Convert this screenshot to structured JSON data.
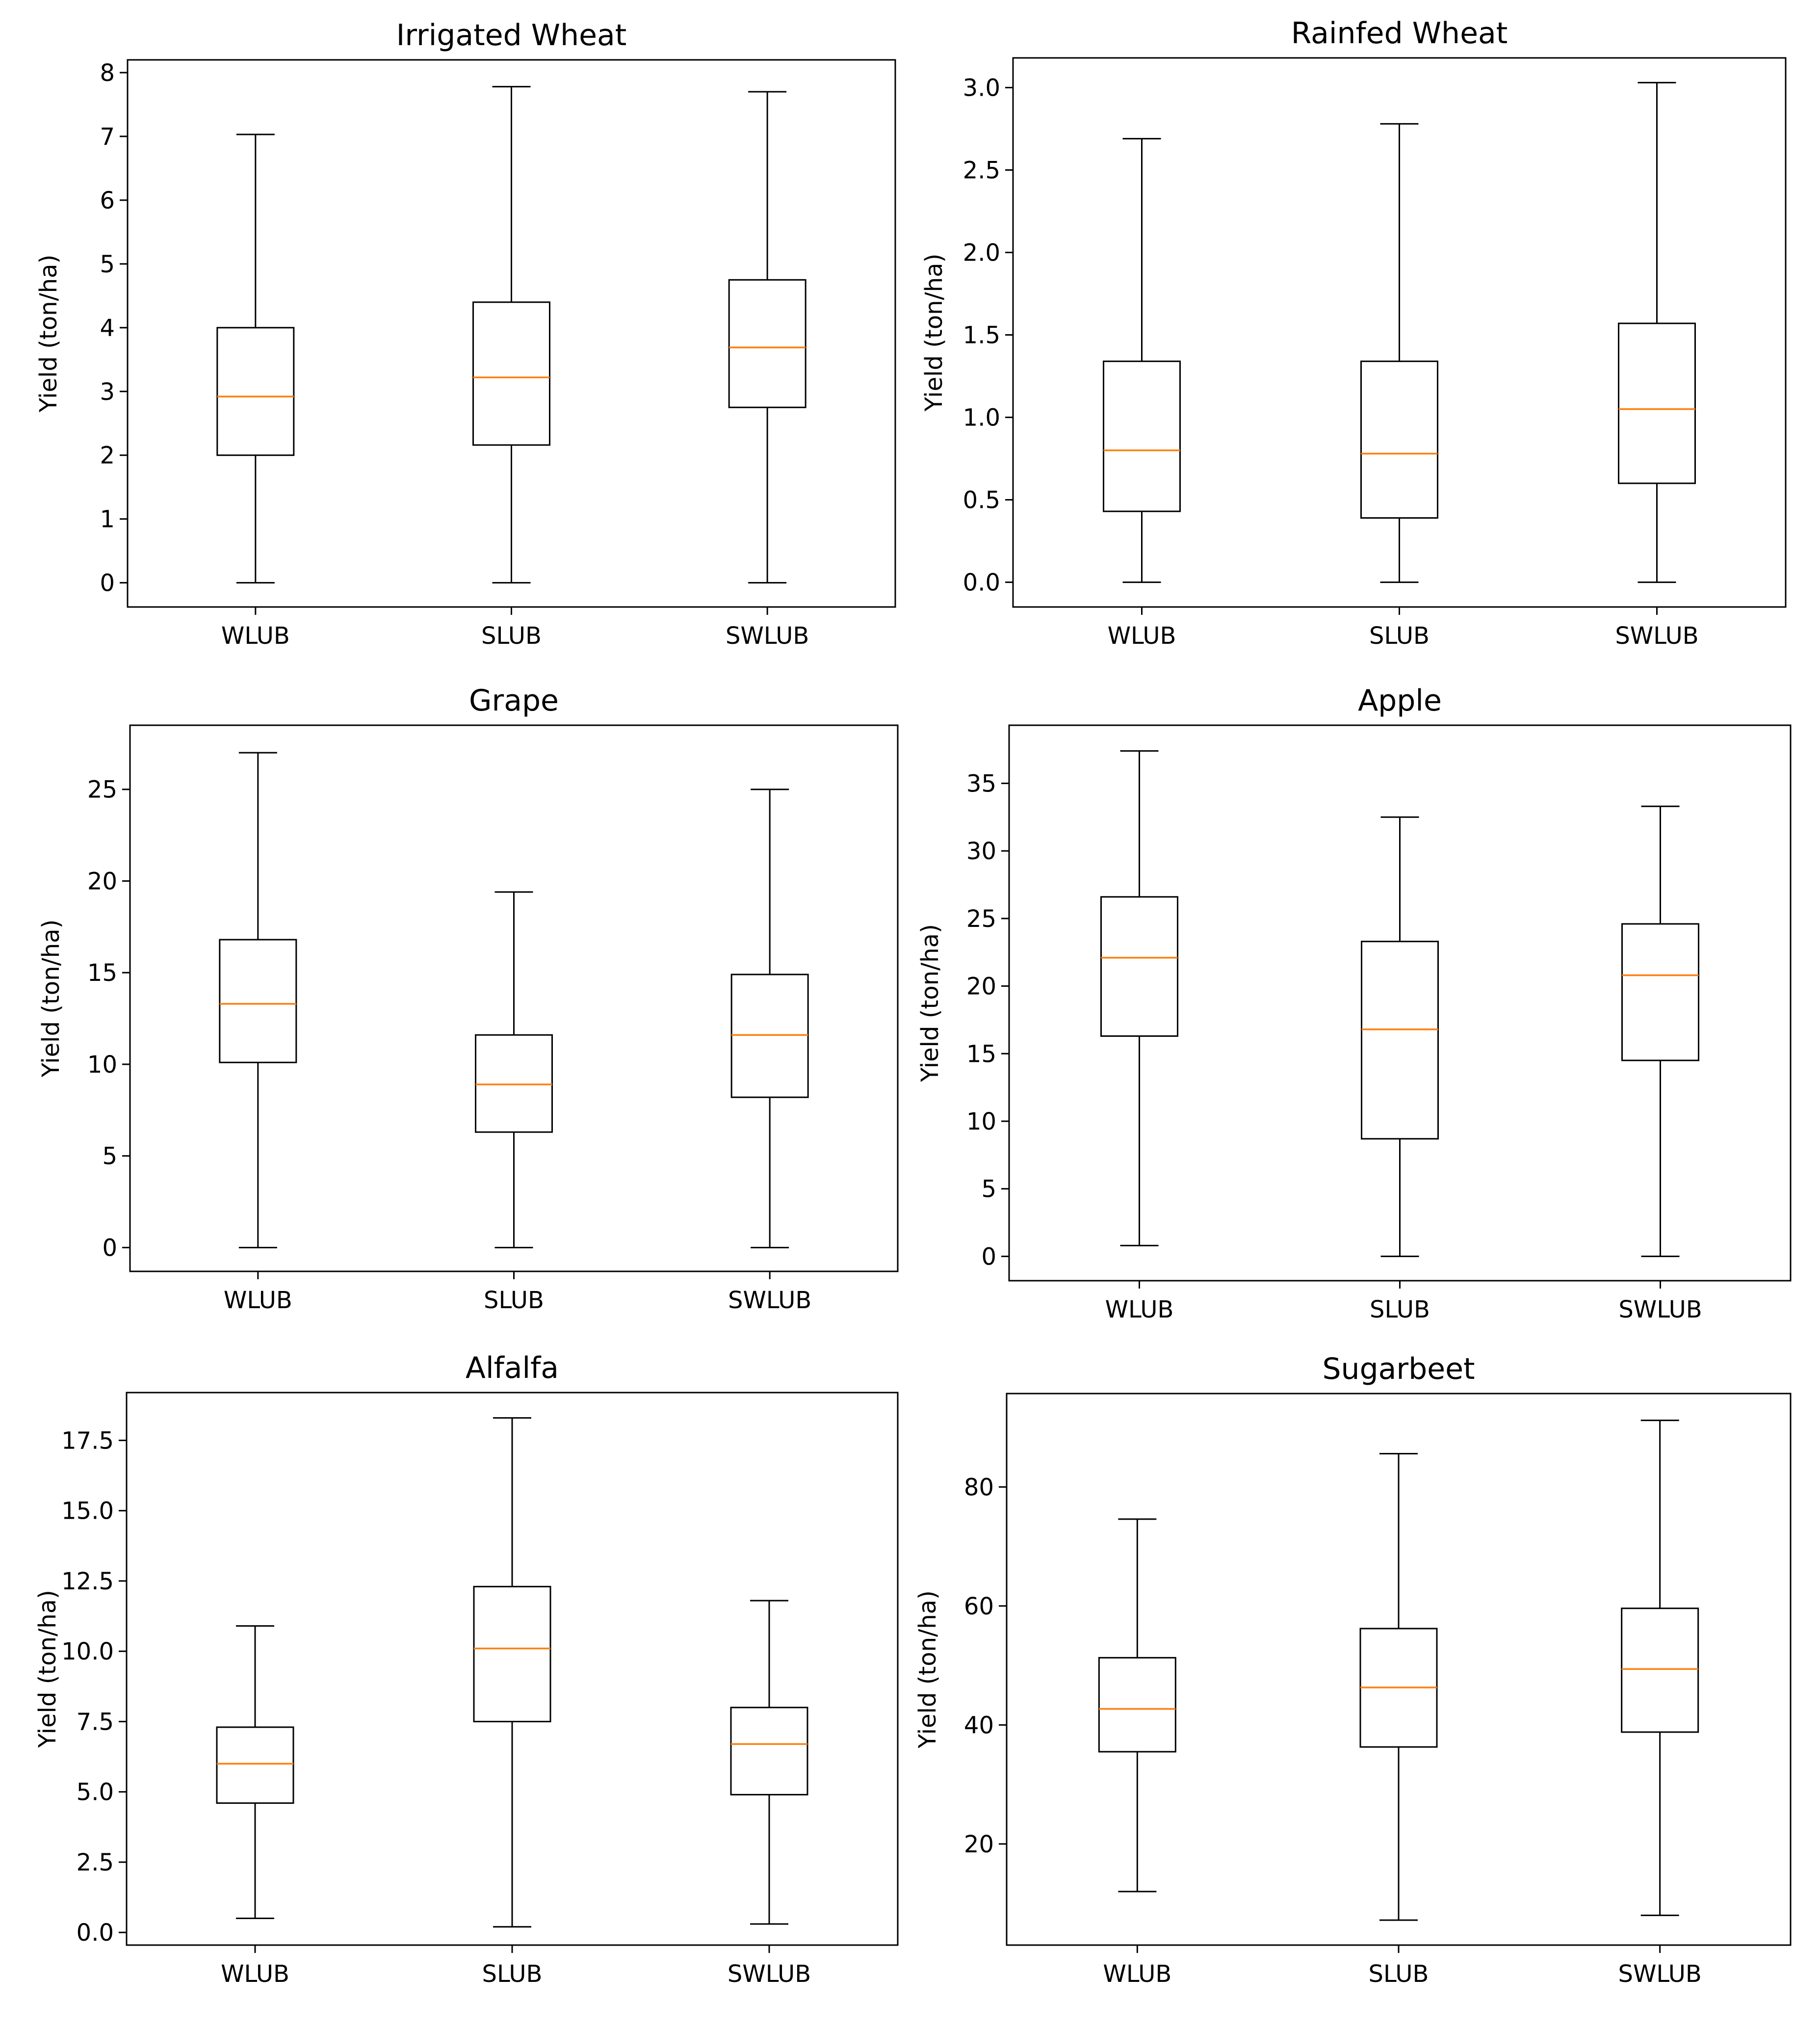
{
  "chart_data": [
    {
      "type": "box",
      "title": "Irrigated Wheat",
      "ylabel": "Yield (ton/ha)",
      "categories": [
        "WLUB",
        "SLUB",
        "SWLUB"
      ],
      "ylim": [
        -0.38,
        8.2
      ],
      "yticks": [
        0,
        1,
        2,
        3,
        4,
        5,
        6,
        7,
        8
      ],
      "yticklabels": [
        "0",
        "1",
        "2",
        "3",
        "4",
        "5",
        "6",
        "7",
        "8"
      ],
      "boxes": [
        {
          "min": 0.0,
          "q1": 2.0,
          "median": 2.92,
          "q3": 4.0,
          "max": 7.03
        },
        {
          "min": 0.0,
          "q1": 2.16,
          "median": 3.22,
          "q3": 4.4,
          "max": 7.78
        },
        {
          "min": 0.0,
          "q1": 2.75,
          "median": 3.69,
          "q3": 4.75,
          "max": 7.7
        }
      ]
    },
    {
      "type": "box",
      "title": "Rainfed Wheat",
      "ylabel": "Yield (ton/ha)",
      "categories": [
        "WLUB",
        "SLUB",
        "SWLUB"
      ],
      "ylim": [
        -0.15,
        3.18
      ],
      "yticks": [
        0,
        0.5,
        1,
        1.5,
        2,
        2.5,
        3
      ],
      "yticklabels": [
        "0.0",
        "0.5",
        "1.0",
        "1.5",
        "2.0",
        "2.5",
        "3.0"
      ],
      "boxes": [
        {
          "min": 0.0,
          "q1": 0.43,
          "median": 0.8,
          "q3": 1.34,
          "max": 2.69
        },
        {
          "min": 0.0,
          "q1": 0.39,
          "median": 0.78,
          "q3": 1.34,
          "max": 2.78
        },
        {
          "min": 0.0,
          "q1": 0.6,
          "median": 1.05,
          "q3": 1.57,
          "max": 3.03
        }
      ]
    },
    {
      "type": "box",
      "title": "Grape",
      "ylabel": "Yield (ton/ha)",
      "categories": [
        "WLUB",
        "SLUB",
        "SWLUB"
      ],
      "ylim": [
        -1.3,
        28.5
      ],
      "yticks": [
        0,
        5,
        10,
        15,
        20,
        25
      ],
      "yticklabels": [
        "0",
        "5",
        "10",
        "15",
        "20",
        "25"
      ],
      "boxes": [
        {
          "min": 0.0,
          "q1": 10.1,
          "median": 13.3,
          "q3": 16.8,
          "max": 27.0
        },
        {
          "min": 0.0,
          "q1": 6.3,
          "median": 8.9,
          "q3": 11.6,
          "max": 19.4
        },
        {
          "min": 0.0,
          "q1": 8.2,
          "median": 11.6,
          "q3": 14.9,
          "max": 25.0
        }
      ]
    },
    {
      "type": "box",
      "title": "Apple",
      "ylabel": "Yield (ton/ha)",
      "categories": [
        "WLUB",
        "SLUB",
        "SWLUB"
      ],
      "ylim": [
        -1.8,
        39.3
      ],
      "yticks": [
        0,
        5,
        10,
        15,
        20,
        25,
        30,
        35
      ],
      "yticklabels": [
        "0",
        "5",
        "10",
        "15",
        "20",
        "25",
        "30",
        "35"
      ],
      "boxes": [
        {
          "min": 0.8,
          "q1": 16.3,
          "median": 22.1,
          "q3": 26.6,
          "max": 37.4
        },
        {
          "min": 0.0,
          "q1": 8.7,
          "median": 16.8,
          "q3": 23.3,
          "max": 32.5
        },
        {
          "min": 0.0,
          "q1": 14.5,
          "median": 20.8,
          "q3": 24.6,
          "max": 33.3
        }
      ]
    },
    {
      "type": "box",
      "title": "Alfalfa",
      "ylabel": "Yield (ton/ha)",
      "categories": [
        "WLUB",
        "SLUB",
        "SWLUB"
      ],
      "ylim": [
        -0.45,
        19.2
      ],
      "yticks": [
        0,
        2.5,
        5,
        7.5,
        10,
        12.5,
        15,
        17.5
      ],
      "yticklabels": [
        "0.0",
        "2.5",
        "5.0",
        "7.5",
        "10.0",
        "12.5",
        "15.0",
        "17.5"
      ],
      "boxes": [
        {
          "min": 0.5,
          "q1": 4.6,
          "median": 6.0,
          "q3": 7.3,
          "max": 10.9
        },
        {
          "min": 0.2,
          "q1": 7.5,
          "median": 10.1,
          "q3": 12.3,
          "max": 18.3
        },
        {
          "min": 0.3,
          "q1": 4.9,
          "median": 6.7,
          "q3": 8.0,
          "max": 11.8
        }
      ]
    },
    {
      "type": "box",
      "title": "Sugarbeet",
      "ylabel": "Yield (ton/ha)",
      "categories": [
        "WLUB",
        "SLUB",
        "SWLUB"
      ],
      "ylim": [
        3.0,
        95.7
      ],
      "yticks": [
        20,
        40,
        60,
        80
      ],
      "yticklabels": [
        "20",
        "40",
        "60",
        "80"
      ],
      "boxes": [
        {
          "min": 12.0,
          "q1": 35.5,
          "median": 42.7,
          "q3": 51.3,
          "max": 74.6
        },
        {
          "min": 7.2,
          "q1": 36.3,
          "median": 46.3,
          "q3": 56.2,
          "max": 85.6
        },
        {
          "min": 8.0,
          "q1": 38.8,
          "median": 49.4,
          "q3": 59.6,
          "max": 91.2
        }
      ]
    }
  ],
  "colors": {
    "box": "#000000",
    "median": "#ff7f0e",
    "background": "#ffffff"
  }
}
